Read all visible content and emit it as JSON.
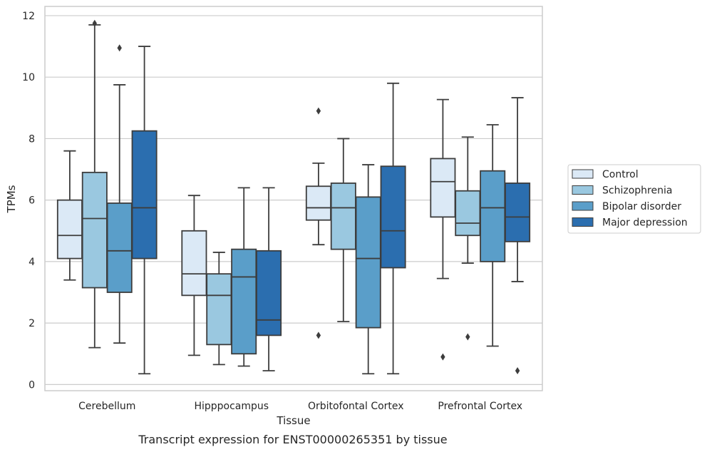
{
  "chart_data": {
    "type": "boxplot",
    "caption": "Transcript expression for ENST00000265351 by tissue",
    "xlabel": "Tissue",
    "ylabel": "TPMs",
    "ylim": [
      -0.2,
      12.3
    ],
    "yticks": [
      0,
      2,
      4,
      6,
      8,
      10,
      12
    ],
    "grid": "horizontal",
    "legend_position": "right",
    "categories": [
      "Cerebellum",
      "Hipppocampus",
      "Orbitofontal Cortex",
      "Prefrontal Cortex"
    ],
    "series": [
      {
        "name": "Control",
        "color": "#dbe9f6",
        "boxes": [
          {
            "whisker_low": 3.4,
            "q1": 4.1,
            "median": 4.85,
            "q3": 6.0,
            "whisker_high": 7.6,
            "outliers": []
          },
          {
            "whisker_low": 0.95,
            "q1": 2.9,
            "median": 3.6,
            "q3": 5.0,
            "whisker_high": 6.15,
            "outliers": []
          },
          {
            "whisker_low": 4.55,
            "q1": 5.35,
            "median": 5.75,
            "q3": 6.45,
            "whisker_high": 7.2,
            "outliers": [
              8.9,
              1.6
            ]
          },
          {
            "whisker_low": 3.45,
            "q1": 5.45,
            "median": 6.6,
            "q3": 7.35,
            "whisker_high": 9.27,
            "outliers": [
              0.9
            ]
          }
        ]
      },
      {
        "name": "Schizophrenia",
        "color": "#9ac8e0",
        "boxes": [
          {
            "whisker_low": 1.2,
            "q1": 3.15,
            "median": 5.4,
            "q3": 6.9,
            "whisker_high": 11.7,
            "outliers": [
              11.75
            ]
          },
          {
            "whisker_low": 0.65,
            "q1": 1.3,
            "median": 2.9,
            "q3": 3.6,
            "whisker_high": 4.3,
            "outliers": []
          },
          {
            "whisker_low": 2.05,
            "q1": 4.4,
            "median": 5.75,
            "q3": 6.55,
            "whisker_high": 8.0,
            "outliers": []
          },
          {
            "whisker_low": 3.95,
            "q1": 4.85,
            "median": 5.25,
            "q3": 6.3,
            "whisker_high": 8.05,
            "outliers": [
              1.55
            ]
          }
        ]
      },
      {
        "name": "Bipolar disorder",
        "color": "#5a9ec9",
        "boxes": [
          {
            "whisker_low": 1.35,
            "q1": 3.0,
            "median": 4.35,
            "q3": 5.9,
            "whisker_high": 9.75,
            "outliers": [
              10.95
            ]
          },
          {
            "whisker_low": 0.6,
            "q1": 1.0,
            "median": 3.5,
            "q3": 4.4,
            "whisker_high": 6.4,
            "outliers": []
          },
          {
            "whisker_low": 0.35,
            "q1": 1.85,
            "median": 4.1,
            "q3": 6.1,
            "whisker_high": 7.15,
            "outliers": []
          },
          {
            "whisker_low": 1.25,
            "q1": 4.0,
            "median": 5.75,
            "q3": 6.95,
            "whisker_high": 8.45,
            "outliers": []
          }
        ]
      },
      {
        "name": "Major depression",
        "color": "#2b6eaf",
        "boxes": [
          {
            "whisker_low": 0.35,
            "q1": 4.1,
            "median": 5.75,
            "q3": 8.25,
            "whisker_high": 11.0,
            "outliers": []
          },
          {
            "whisker_low": 0.45,
            "q1": 1.6,
            "median": 2.1,
            "q3": 4.35,
            "whisker_high": 6.4,
            "outliers": []
          },
          {
            "whisker_low": 0.35,
            "q1": 3.8,
            "median": 5.0,
            "q3": 7.1,
            "whisker_high": 9.8,
            "outliers": []
          },
          {
            "whisker_low": 3.35,
            "q1": 4.65,
            "median": 5.45,
            "q3": 6.55,
            "whisker_high": 9.33,
            "outliers": [
              0.45
            ]
          }
        ]
      }
    ]
  }
}
